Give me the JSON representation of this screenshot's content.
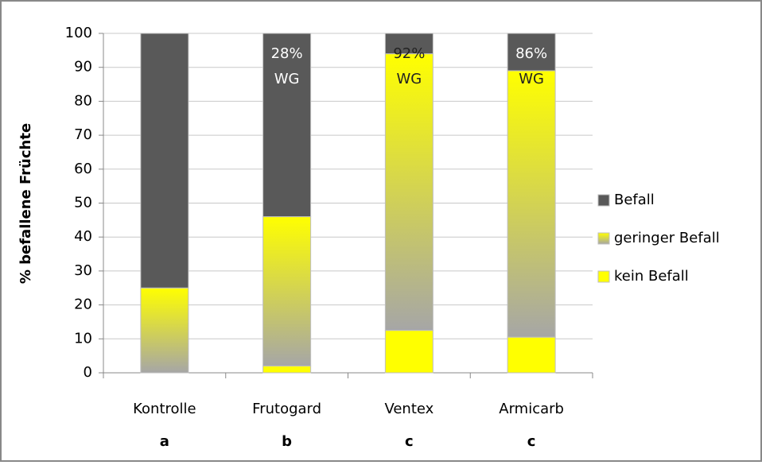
{
  "chart_data": {
    "type": "stacked_bar",
    "ylabel": "% befallene Früchte",
    "categories": [
      "Kontrolle",
      "Frutogard",
      "Ventex",
      "Armicarb"
    ],
    "groups": [
      "a",
      "b",
      "c",
      "c"
    ],
    "annotations": [
      null,
      [
        "28%",
        "WG"
      ],
      [
        "92%",
        "WG"
      ],
      [
        "86%",
        "WG"
      ]
    ],
    "series": [
      {
        "name": "kein Befall",
        "color": "#ffff00",
        "values": [
          0,
          2,
          12.5,
          10.5
        ]
      },
      {
        "name": "geringer Befall",
        "color": [
          "#ffff00",
          "#a6a6a6"
        ],
        "values": [
          25,
          44,
          81.5,
          78.5
        ]
      },
      {
        "name": "Befall",
        "color": "#595959",
        "values": [
          75,
          54,
          6,
          11
        ]
      }
    ],
    "ylim": [
      0,
      100
    ],
    "yticks": [
      0,
      10,
      20,
      30,
      40,
      50,
      60,
      70,
      80,
      90,
      100
    ],
    "grid": true,
    "legend": "right"
  }
}
